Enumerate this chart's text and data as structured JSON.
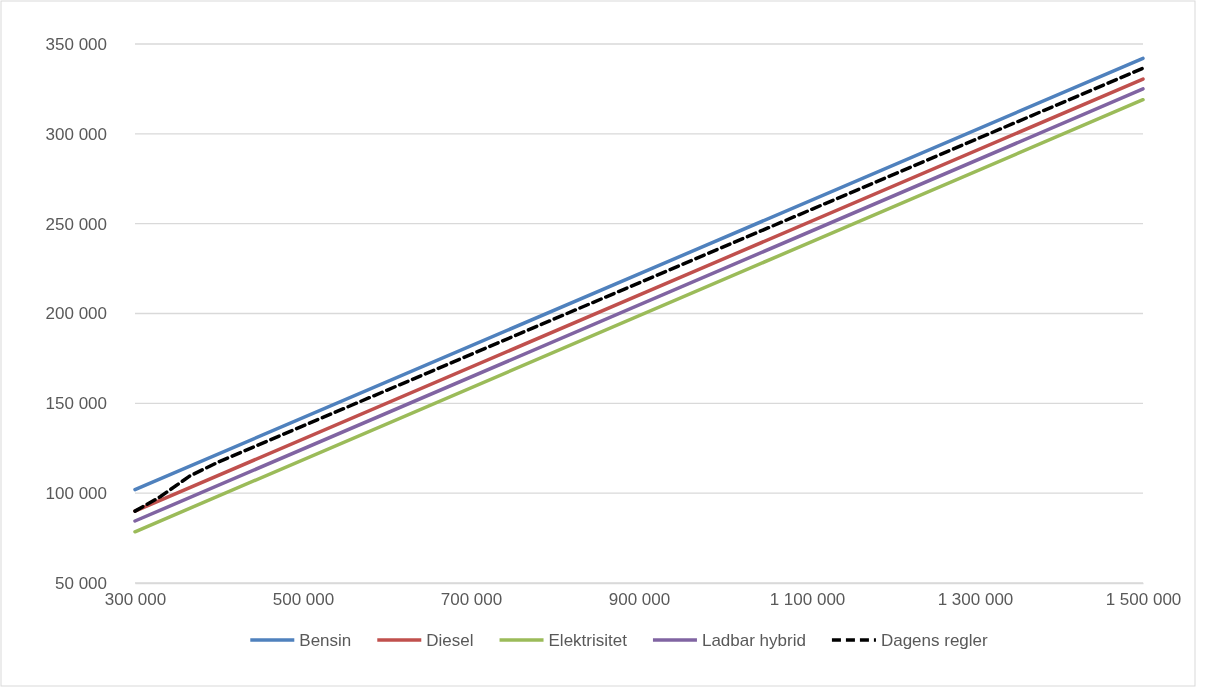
{
  "chart_data": {
    "type": "line",
    "xlim": [
      300000,
      1500000
    ],
    "xticks": [
      {
        "value": 300000,
        "label": "300 000"
      },
      {
        "value": 500000,
        "label": "500 000"
      },
      {
        "value": 700000,
        "label": "700 000"
      },
      {
        "value": 900000,
        "label": "900 000"
      },
      {
        "value": 1100000,
        "label": "1 100 000"
      },
      {
        "value": 1300000,
        "label": "1 300 000"
      },
      {
        "value": 1500000,
        "label": "1 500 000"
      }
    ],
    "ylim": [
      50000,
      350000
    ],
    "yticks": [
      {
        "value": 50000,
        "label": "50 000"
      },
      {
        "value": 100000,
        "label": "100 000"
      },
      {
        "value": 150000,
        "label": "150 000"
      },
      {
        "value": 200000,
        "label": "200 000"
      },
      {
        "value": 250000,
        "label": "250 000"
      },
      {
        "value": 300000,
        "label": "300 000"
      },
      {
        "value": 350000,
        "label": "350 000"
      }
    ],
    "grid": "y",
    "legend": "bottom",
    "marker": "none",
    "series": [
      {
        "name": "Bensin",
        "color": "#4f81bd",
        "x": [
          300000,
          1500000
        ],
        "values": [
          102000,
          342000
        ]
      },
      {
        "name": "Diesel",
        "color": "#c0504d",
        "x": [
          300000,
          1500000
        ],
        "values": [
          90000,
          330500
        ]
      },
      {
        "name": "Elektrisitet",
        "color": "#9bbb59",
        "x": [
          300000,
          1500000
        ],
        "values": [
          78500,
          319000
        ]
      },
      {
        "name": "Ladbar hybrid",
        "color": "#8064a2",
        "x": [
          300000,
          1500000
        ],
        "values": [
          84500,
          325000
        ]
      },
      {
        "name": "Dagens regler",
        "color": "#000000",
        "line_style": "dashed",
        "x": [
          300000,
          330000,
          365000,
          400000,
          1500000
        ],
        "values": [
          90000,
          98000,
          109500,
          117500,
          336500
        ]
      }
    ]
  }
}
